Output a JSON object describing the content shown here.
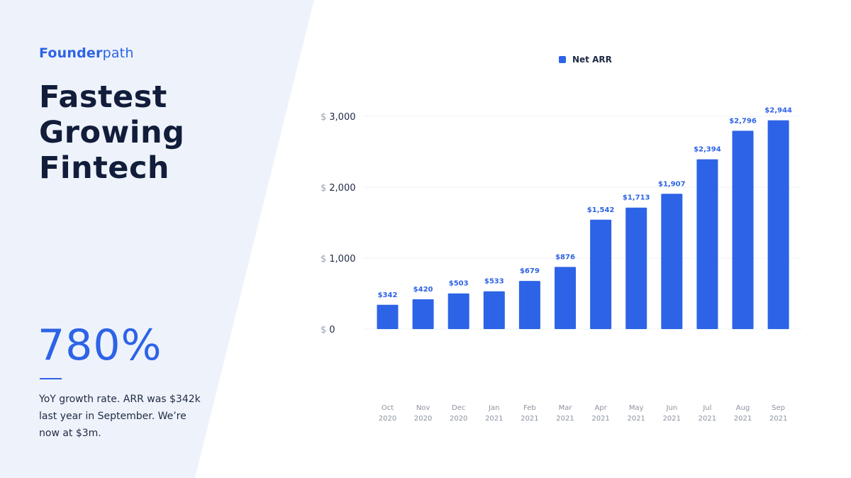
{
  "brand": {
    "bold": "Founder",
    "light": "path"
  },
  "headline": "Fastest Growing Fintech",
  "stat": {
    "value": "780%",
    "description": "YoY growth rate. ARR was $342k last year in September. We’re now at $3m."
  },
  "colors": {
    "accent": "#2d63e6",
    "panel": "#eef3fb",
    "text_dark": "#111d3a",
    "grid": "#eef0f4"
  },
  "chart_data": {
    "type": "bar",
    "legend": {
      "label": "Net ARR",
      "position": "top"
    },
    "currency_symbol": "$",
    "categories": [
      [
        "Oct",
        "2020"
      ],
      [
        "Nov",
        "2020"
      ],
      [
        "Dec",
        "2020"
      ],
      [
        "Jan",
        "2021"
      ],
      [
        "Feb",
        "2021"
      ],
      [
        "Mar",
        "2021"
      ],
      [
        "Apr",
        "2021"
      ],
      [
        "May",
        "2021"
      ],
      [
        "Jun",
        "2021"
      ],
      [
        "Jul",
        "2021"
      ],
      [
        "Aug",
        "2021"
      ],
      [
        "Sep",
        "2021"
      ]
    ],
    "series": [
      {
        "name": "Net ARR",
        "values": [
          342,
          420,
          503,
          533,
          679,
          876,
          1542,
          1713,
          1907,
          2394,
          2796,
          2944
        ],
        "value_labels": [
          "$342",
          "$420",
          "$503",
          "$533",
          "$679",
          "$876",
          "$1,542",
          "$1,713",
          "$1,907",
          "$2,394",
          "$2,796",
          "$2,944"
        ]
      }
    ],
    "yticks": [
      {
        "value": 0,
        "label": "0"
      },
      {
        "value": 1000,
        "label": "1,000"
      },
      {
        "value": 2000,
        "label": "2,000"
      },
      {
        "value": 3000,
        "label": "3,000"
      }
    ],
    "ylim": [
      0,
      3000
    ],
    "grid": true
  }
}
